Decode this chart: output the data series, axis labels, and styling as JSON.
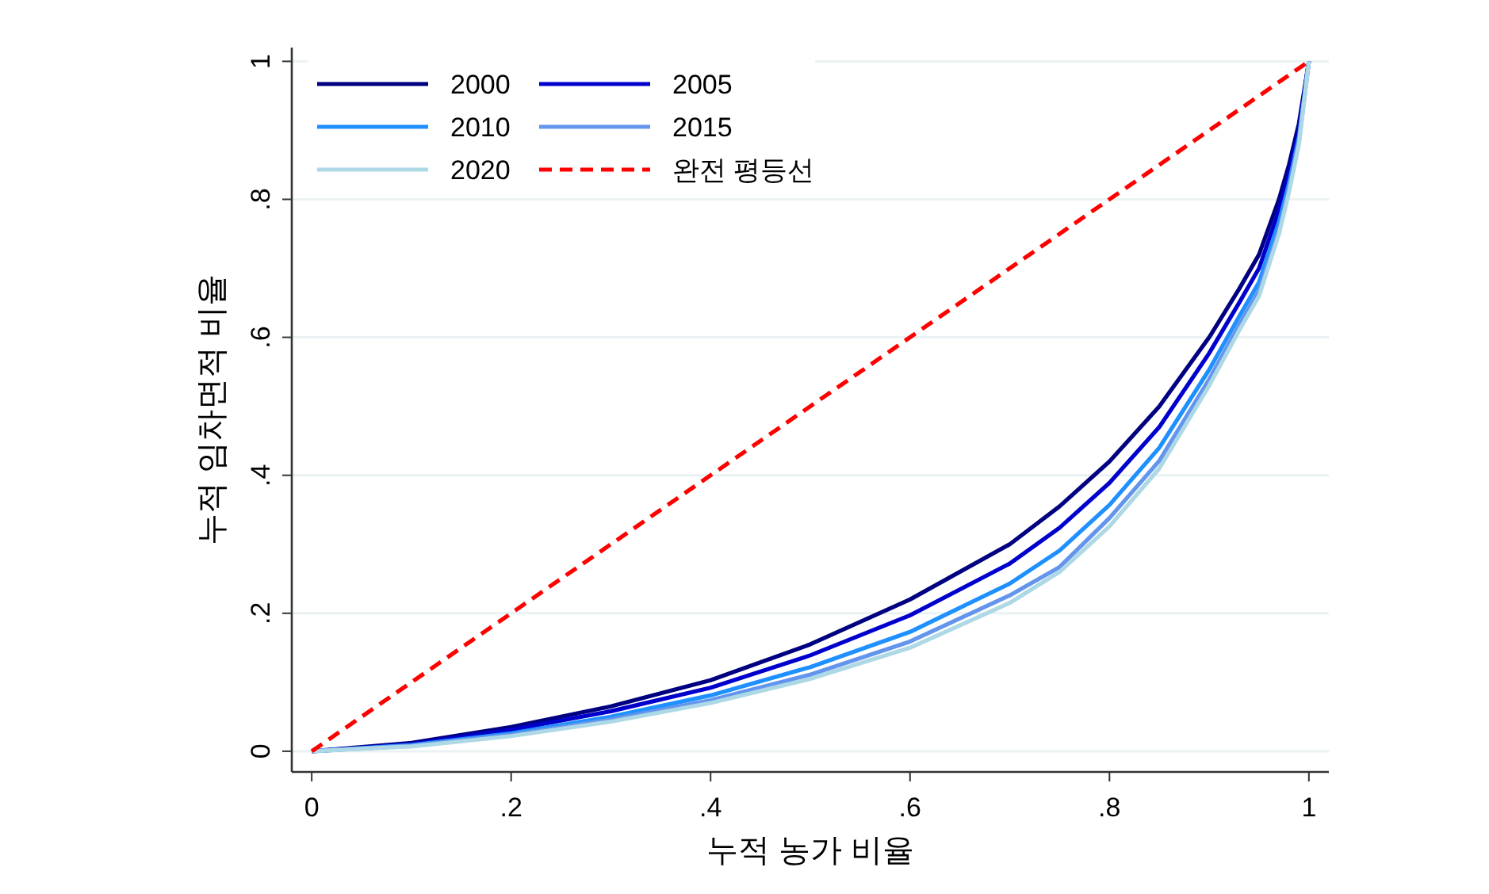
{
  "chart_data": {
    "type": "line",
    "xlabel": "누적 농가 비율",
    "ylabel": "누적 임차면적 비율",
    "xlim": [
      -0.02,
      1.02
    ],
    "ylim": [
      -0.03,
      1.02
    ],
    "xticks": [
      0,
      {
        "value": 0.2,
        "label": ".2"
      },
      {
        "value": 0.4,
        "label": ".4"
      },
      {
        "value": 0.6,
        "label": ".6"
      },
      {
        "value": 0.8,
        "label": ".8"
      },
      1
    ],
    "yticks": [
      0,
      {
        "value": 0.2,
        "label": ".2"
      },
      {
        "value": 0.4,
        "label": ".4"
      },
      {
        "value": 0.6,
        "label": ".6"
      },
      {
        "value": 0.8,
        "label": ".8"
      },
      1
    ],
    "grid": "y",
    "legend": "top left",
    "line_style": "solid",
    "marker": "none",
    "x": [
      0,
      0.1,
      0.2,
      0.3,
      0.4,
      0.5,
      0.6,
      0.7,
      0.75,
      0.8,
      0.85,
      0.9,
      0.93,
      0.95,
      0.97,
      0.98,
      0.99,
      1
    ],
    "series": [
      {
        "name": "2000",
        "color": "#000080",
        "values": [
          0,
          0.012,
          0.035,
          0.065,
          0.103,
          0.155,
          0.22,
          0.3,
          0.355,
          0.42,
          0.5,
          0.6,
          0.67,
          0.72,
          0.8,
          0.85,
          0.91,
          1
        ]
      },
      {
        "name": "2005",
        "color": "#0000cd",
        "values": [
          0,
          0.01,
          0.031,
          0.058,
          0.092,
          0.139,
          0.197,
          0.272,
          0.324,
          0.389,
          0.47,
          0.577,
          0.65,
          0.7,
          0.784,
          0.837,
          0.9,
          1
        ]
      },
      {
        "name": "2010",
        "color": "#1e90ff",
        "values": [
          0,
          0.009,
          0.026,
          0.05,
          0.081,
          0.122,
          0.173,
          0.243,
          0.291,
          0.357,
          0.44,
          0.553,
          0.63,
          0.68,
          0.767,
          0.823,
          0.89,
          1
        ]
      },
      {
        "name": "2015",
        "color": "#6495ed",
        "values": [
          0,
          0.008,
          0.024,
          0.046,
          0.074,
          0.111,
          0.159,
          0.226,
          0.267,
          0.338,
          0.421,
          0.539,
          0.618,
          0.668,
          0.756,
          0.815,
          0.884,
          1
        ]
      },
      {
        "name": "2020",
        "color": "#add8e6",
        "values": [
          0,
          0.007,
          0.022,
          0.043,
          0.07,
          0.105,
          0.15,
          0.215,
          0.26,
          0.326,
          0.41,
          0.53,
          0.61,
          0.66,
          0.75,
          0.81,
          0.88,
          1
        ]
      },
      {
        "name": "완전 평등선",
        "color": "#ff0000",
        "line_style": "dashed",
        "x": [
          0,
          1
        ],
        "values": [
          0,
          1
        ]
      }
    ]
  }
}
